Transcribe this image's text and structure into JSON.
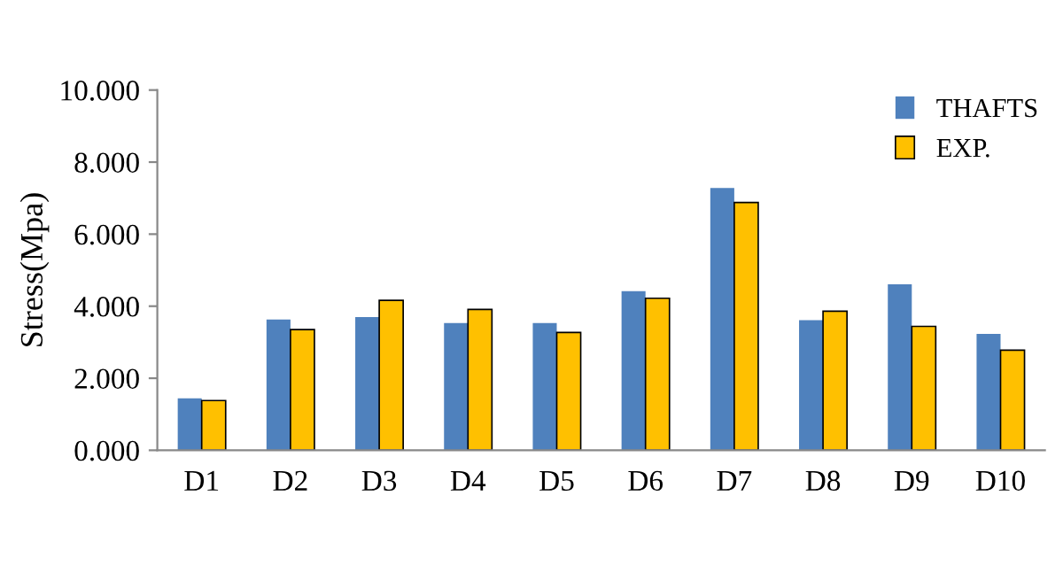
{
  "chart_data": {
    "type": "bar",
    "ylabel": "Stress(Mpa)",
    "categories": [
      "D1",
      "D2",
      "D3",
      "D4",
      "D5",
      "D6",
      "D7",
      "D8",
      "D9",
      "D10"
    ],
    "series": [
      {
        "name": "THAFTS",
        "color": "#4f81bd",
        "values": [
          1.44,
          3.63,
          3.7,
          3.53,
          3.53,
          4.42,
          7.28,
          3.61,
          4.61,
          3.23
        ]
      },
      {
        "name": "EXP.",
        "color": "#ffc000",
        "values": [
          1.38,
          3.35,
          4.16,
          3.91,
          3.27,
          4.22,
          6.88,
          3.86,
          3.44,
          2.78
        ]
      }
    ],
    "ylim": [
      0,
      10
    ],
    "yticks": [
      {
        "value": 0,
        "label": "0.000"
      },
      {
        "value": 2,
        "label": "2.000"
      },
      {
        "value": 4,
        "label": "4.000"
      },
      {
        "value": 6,
        "label": "6.000"
      },
      {
        "value": 8,
        "label": "8.000"
      },
      {
        "value": 10,
        "label": "10.000"
      }
    ],
    "grid": false,
    "legend": "top right"
  }
}
